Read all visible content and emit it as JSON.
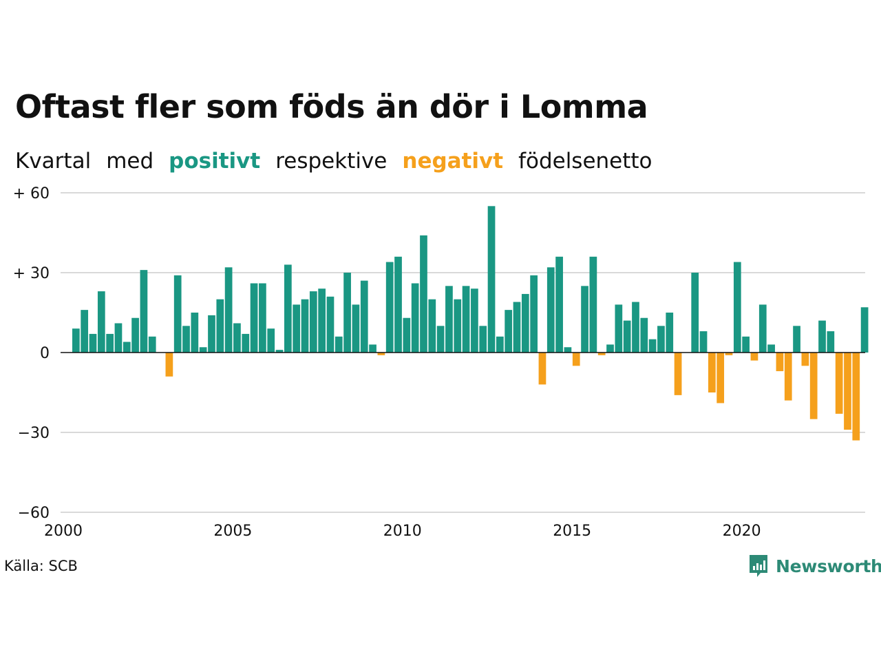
{
  "title": "Oftast fler som föds än dör i Lomma",
  "subtitle": {
    "part1": "Kvartal",
    "part2": "med",
    "positive": "positivt",
    "part3": "respektive",
    "negative": "negativt",
    "part4": "födelsenetto"
  },
  "source": "Källa: SCB",
  "brand": "Newsworthy",
  "colors": {
    "positive": "#1a9783",
    "negative": "#f5a01c",
    "grid": "#d9d9d9",
    "baseline": "#111111",
    "brand": "#2d8a76"
  },
  "chart_data": {
    "type": "bar",
    "xlabel": "",
    "ylabel": "",
    "ylim": [
      -60,
      60
    ],
    "y_ticks": [
      {
        "value": 60,
        "label": "+ 60"
      },
      {
        "value": 30,
        "label": "+ 30"
      },
      {
        "value": 0,
        "label": "0"
      },
      {
        "value": -30,
        "label": "−30"
      },
      {
        "value": -60,
        "label": "−60"
      }
    ],
    "x_ticks": [
      "2000",
      "2005",
      "2010",
      "2015",
      "2020"
    ],
    "grid": true,
    "start_year": 2000,
    "values": [
      9,
      16,
      7,
      23,
      7,
      11,
      4,
      13,
      31,
      6,
      0,
      -9,
      29,
      10,
      15,
      2,
      14,
      20,
      32,
      11,
      7,
      26,
      26,
      9,
      1,
      33,
      18,
      20,
      23,
      24,
      21,
      6,
      30,
      18,
      27,
      3,
      -1,
      34,
      36,
      13,
      26,
      44,
      20,
      10,
      25,
      20,
      25,
      24,
      10,
      55,
      6,
      16,
      19,
      22,
      29,
      -12,
      32,
      36,
      2,
      -5,
      25,
      36,
      -1,
      3,
      18,
      12,
      19,
      13,
      5,
      10,
      15,
      -16,
      0,
      30,
      8,
      -15,
      -19,
      -1,
      34,
      6,
      -3,
      18,
      3,
      -7,
      -18,
      10,
      -5,
      -25,
      12,
      8,
      -23,
      -29,
      -33,
      17
    ]
  }
}
